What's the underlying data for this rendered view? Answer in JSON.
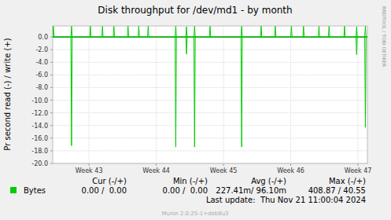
{
  "chart_data": {
    "type": "line",
    "title": "Disk throughput for /dev/md1 - by month",
    "y_label": "Pr second read (-) / write (+)",
    "watermark": "RRDTOOL / TOBI OETIKER",
    "grid": true,
    "xlim": [
      42.96,
      47.64
    ],
    "xticks": [
      {
        "value": 43.5,
        "label": "Week 43"
      },
      {
        "value": 44.5,
        "label": "Week 44"
      },
      {
        "value": 45.5,
        "label": "Week 45"
      },
      {
        "value": 46.5,
        "label": "Week 46"
      },
      {
        "value": 47.5,
        "label": "Week 47"
      }
    ],
    "ylim": [
      -20,
      1.75
    ],
    "yticks": [
      {
        "value": 0,
        "label": "0.0"
      },
      {
        "value": -2,
        "label": "-2.0"
      },
      {
        "value": -4,
        "label": "-4.0"
      },
      {
        "value": -6,
        "label": "-6.0"
      },
      {
        "value": -8,
        "label": "-8.0"
      },
      {
        "value": -10,
        "label": "-10.0"
      },
      {
        "value": -12,
        "label": "-12.0"
      },
      {
        "value": -14,
        "label": "-14.0"
      },
      {
        "value": -16,
        "label": "-16.0"
      },
      {
        "value": -18,
        "label": "-18.0"
      },
      {
        "value": -20,
        "label": "-20.0"
      }
    ],
    "x": [
      42.96,
      42.97,
      42.98,
      43.23,
      43.24,
      43.25,
      43.51,
      43.52,
      43.53,
      43.69,
      43.7,
      43.71,
      43.86,
      43.87,
      43.88,
      44.07,
      44.08,
      44.09,
      44.23,
      44.24,
      44.25,
      44.37,
      44.38,
      44.39,
      44.78,
      44.79,
      44.8,
      44.94,
      44.95,
      44.96,
      45.06,
      45.07,
      45.08,
      45.29,
      45.3,
      45.31,
      45.76,
      45.77,
      45.78,
      46.05,
      46.06,
      46.07,
      46.26,
      46.27,
      46.28,
      46.5,
      46.51,
      46.52,
      46.68,
      46.69,
      46.7,
      46.91,
      46.92,
      46.93,
      47.06,
      47.07,
      47.08,
      47.29,
      47.3,
      47.31,
      47.47,
      47.48,
      47.49,
      47.6,
      47.61,
      47.62,
      47.64
    ],
    "series": [
      {
        "name": "Bytes",
        "color": "#00cc00",
        "values": [
          0,
          1.7,
          0,
          0,
          1.7,
          0,
          0,
          1.7,
          0,
          0,
          1.7,
          0,
          0,
          1.7,
          0,
          0,
          1.7,
          0,
          0,
          1.7,
          0,
          0,
          1.7,
          0,
          0,
          1.7,
          0,
          0,
          1.6,
          0,
          0,
          1.7,
          0,
          0,
          1.7,
          0,
          0,
          1.7,
          0,
          0,
          1.7,
          0,
          0,
          1.7,
          0,
          0,
          1.7,
          0,
          0,
          1.7,
          0,
          0,
          1.7,
          0,
          0,
          1.7,
          0,
          0,
          1.7,
          0,
          0,
          1.6,
          0,
          0,
          1.7,
          0,
          0
        ]
      },
      {
        "color": "#00cc00",
        "values": [
          0,
          0,
          0,
          0,
          -17.2,
          0,
          0,
          0,
          0,
          0,
          0,
          0,
          0,
          0,
          0,
          0,
          0,
          0,
          0,
          0,
          0,
          0,
          0,
          0,
          0,
          -17.4,
          0,
          0,
          -2.7,
          0,
          0,
          -17.4,
          0,
          0,
          0,
          0,
          0,
          -17.4,
          0,
          0,
          0,
          0,
          0,
          0,
          0,
          0,
          0,
          0,
          0,
          0,
          0,
          0,
          0,
          0,
          0,
          0,
          0,
          0,
          0,
          0,
          0,
          -2.8,
          0,
          0,
          -14.3,
          0,
          0
        ]
      }
    ],
    "stats": {
      "columns": [
        "Cur (-/+)",
        "Min (-/+)",
        "Avg (-/+)",
        "Max (-/+)"
      ],
      "values": [
        "0.00 /  0.00",
        "0.00 /  0.00",
        "227.41m/ 96.10m",
        "408.87 / 40.55"
      ]
    },
    "last_update": "Last update:  Thu Nov 21 11:00:04 2024",
    "credit": "Munin 2.0.25-1+deb8u3"
  }
}
